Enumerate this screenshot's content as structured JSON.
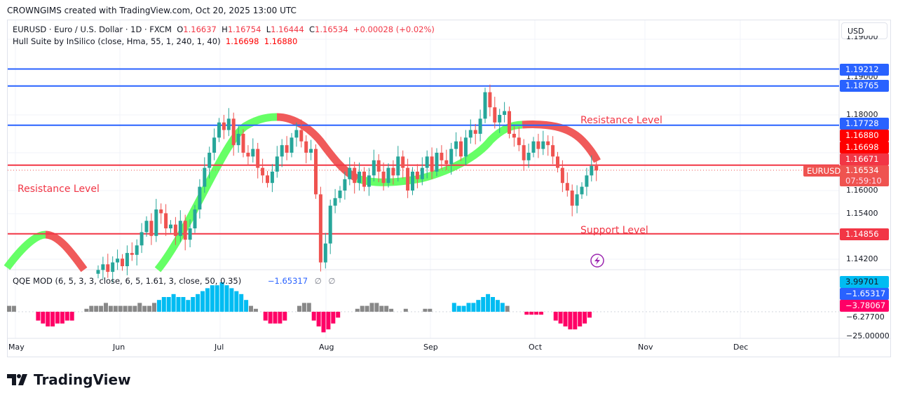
{
  "credit": "CROWNGIMS created with TradingView.com, Oct 20, 2025 13:00 UTC",
  "legend": {
    "symbol": "EURUSD · Euro / U.S. Dollar · 1D · FXCM",
    "o_label": "O",
    "o": "1.16637",
    "h_label": "H",
    "h": "1.16754",
    "l_label": "L",
    "l": "1.16444",
    "c_label": "C",
    "c": "1.16534",
    "change": "+0.00028 (+0.02%)",
    "hull_label": "Hull Suite by InSilico (close, Hma, 55, 1, 240, 1, 40)",
    "hull_v1": "1.16698",
    "hull_v2": "1.16880",
    "qqe_label": "QQE MOD (6, 5, 3, 3, close, 6, 5, 1.61, 3, close, 50, 0.35)",
    "qqe_value": "−1.65317",
    "qqe_na1": "∅",
    "qqe_na2": "∅"
  },
  "currency": "USD",
  "price_ticks": [
    "1.19000",
    "1.18000",
    "1.16000",
    "1.15400",
    "1.14200"
  ],
  "price_tags": [
    {
      "text": "1.19212",
      "color": "#2962ff"
    },
    {
      "text": "1.18765",
      "color": "#2962ff"
    },
    {
      "text": "1.17728",
      "color": "#2962ff"
    },
    {
      "text": "1.16880",
      "color": "#ff0000"
    },
    {
      "text": "1.16698",
      "color": "#ff0000"
    },
    {
      "text": "1.16671",
      "color": "#f23645"
    },
    {
      "text": "1.14856",
      "color": "#f23645"
    }
  ],
  "current": {
    "symbol": "EURUSD",
    "price": "1.16534",
    "countdown": "07:59:10",
    "color": "#ef5350"
  },
  "qqe_tags": [
    {
      "text": "3.99701",
      "color": "#00bcf2",
      "fg": "#131722"
    },
    {
      "text": "−1.65317",
      "color": "#2962ff",
      "fg": "#fff"
    },
    {
      "text": "−3.78067",
      "color": "#ff0066",
      "fg": "#fff"
    }
  ],
  "qqe_ticks": [
    "−6.27700",
    "−25.00000"
  ],
  "time_labels": [
    "May",
    "Jun",
    "Jul",
    "Aug",
    "Sep",
    "Oct",
    "Nov",
    "Dec"
  ],
  "annotations": {
    "res_right": "Resistance Level",
    "res_left": "Resistance Level",
    "support": "Support Level"
  },
  "brand": "TradingView",
  "colors": {
    "up": "#26a69a",
    "down": "#ef5350",
    "blue_line": "#2962ff",
    "red_line": "#f23645",
    "hull_up": "#66ff66",
    "hull_down": "#f05a5a"
  },
  "chart_data": {
    "type": "candlestick",
    "start_date": "2025-05-27",
    "end_date": "2025-10-20",
    "closes": [
      1.139,
      1.1405,
      1.1385,
      1.141,
      1.142,
      1.14,
      1.1435,
      1.143,
      1.1455,
      1.149,
      1.152,
      1.148,
      1.155,
      1.154,
      1.15,
      1.151,
      1.148,
      1.152,
      1.147,
      1.15,
      1.155,
      1.161,
      1.166,
      1.17,
      1.174,
      1.178,
      1.176,
      1.179,
      1.172,
      1.175,
      1.17,
      1.169,
      1.171,
      1.166,
      1.164,
      1.162,
      1.165,
      1.169,
      1.172,
      1.17,
      1.174,
      1.176,
      1.173,
      1.17,
      1.171,
      1.159,
      1.141,
      1.146,
      1.156,
      1.158,
      1.16,
      1.163,
      1.166,
      1.162,
      1.165,
      1.161,
      1.164,
      1.168,
      1.165,
      1.162,
      1.166,
      1.164,
      1.169,
      1.166,
      1.16,
      1.165,
      1.163,
      1.166,
      1.169,
      1.165,
      1.17,
      1.168,
      1.167,
      1.171,
      1.173,
      1.169,
      1.174,
      1.176,
      1.175,
      1.179,
      1.186,
      1.182,
      1.178,
      1.18,
      1.181,
      1.175,
      1.174,
      1.172,
      1.168,
      1.17,
      1.173,
      1.171,
      1.173,
      1.172,
      1.169,
      1.166,
      1.162,
      1.16,
      1.156,
      1.159,
      1.161,
      1.164,
      1.1665,
      1.1653
    ],
    "levels": [
      1.19212,
      1.18765,
      1.17728,
      1.16671,
      1.14856
    ],
    "qqe_hist": [
      [
        2,
        "g"
      ],
      [
        2,
        "g"
      ],
      [
        0,
        "g"
      ],
      [
        0,
        "g"
      ],
      [
        0,
        "g"
      ],
      [
        0,
        "g"
      ],
      [
        -3,
        "p"
      ],
      [
        -4,
        "p"
      ],
      [
        -5,
        "p"
      ],
      [
        -5,
        "p"
      ],
      [
        -4,
        "p"
      ],
      [
        -4,
        "p"
      ],
      [
        -3,
        "p"
      ],
      [
        -3,
        "p"
      ],
      [
        0,
        "g"
      ],
      [
        0,
        "g"
      ],
      [
        1,
        "g"
      ],
      [
        2,
        "g"
      ],
      [
        2,
        "g"
      ],
      [
        2,
        "g"
      ],
      [
        3,
        "g"
      ],
      [
        2,
        "g"
      ],
      [
        2,
        "g"
      ],
      [
        2,
        "g"
      ],
      [
        2,
        "g"
      ],
      [
        2,
        "g"
      ],
      [
        2,
        "g"
      ],
      [
        3,
        "g"
      ],
      [
        2,
        "g"
      ],
      [
        2,
        "g"
      ],
      [
        3,
        "g"
      ],
      [
        4,
        "b"
      ],
      [
        5,
        "b"
      ],
      [
        5,
        "b"
      ],
      [
        6,
        "b"
      ],
      [
        5,
        "b"
      ],
      [
        5,
        "b"
      ],
      [
        4,
        "b"
      ],
      [
        5,
        "b"
      ],
      [
        6,
        "b"
      ],
      [
        7,
        "b"
      ],
      [
        8,
        "b"
      ],
      [
        9,
        "b"
      ],
      [
        9,
        "b"
      ],
      [
        10,
        "b"
      ],
      [
        9,
        "b"
      ],
      [
        8,
        "b"
      ],
      [
        7,
        "b"
      ],
      [
        6,
        "b"
      ],
      [
        4,
        "b"
      ],
      [
        2,
        "g"
      ],
      [
        1,
        "g"
      ],
      [
        0,
        "g"
      ],
      [
        -3,
        "p"
      ],
      [
        -4,
        "p"
      ],
      [
        -4,
        "p"
      ],
      [
        -4,
        "p"
      ],
      [
        -3,
        "p"
      ],
      [
        0,
        "g"
      ],
      [
        0,
        "g"
      ],
      [
        2,
        "g"
      ],
      [
        3,
        "g"
      ],
      [
        3,
        "g"
      ],
      [
        -3,
        "p"
      ],
      [
        -5,
        "p"
      ],
      [
        -7,
        "p"
      ],
      [
        -6,
        "p"
      ],
      [
        -4,
        "p"
      ],
      [
        -2,
        "p"
      ],
      [
        0,
        "g"
      ],
      [
        0,
        "g"
      ],
      [
        0,
        "g"
      ],
      [
        1,
        "g"
      ],
      [
        2,
        "g"
      ],
      [
        2,
        "g"
      ],
      [
        3,
        "g"
      ],
      [
        3,
        "g"
      ],
      [
        2,
        "g"
      ],
      [
        2,
        "g"
      ],
      [
        1,
        "g"
      ],
      [
        0,
        "g"
      ],
      [
        0,
        "g"
      ],
      [
        1,
        "g"
      ],
      [
        0,
        "g"
      ],
      [
        0,
        "g"
      ],
      [
        0,
        "g"
      ],
      [
        1,
        "g"
      ],
      [
        1,
        "g"
      ],
      [
        0,
        "g"
      ],
      [
        0,
        "g"
      ],
      [
        0,
        "g"
      ],
      [
        0,
        "g"
      ],
      [
        3,
        "b"
      ],
      [
        2,
        "b"
      ],
      [
        2,
        "b"
      ],
      [
        3,
        "b"
      ],
      [
        3,
        "b"
      ],
      [
        4,
        "b"
      ],
      [
        5,
        "b"
      ],
      [
        6,
        "b"
      ],
      [
        5,
        "b"
      ],
      [
        4,
        "b"
      ],
      [
        3,
        "b"
      ],
      [
        2,
        "g"
      ],
      [
        0,
        "g"
      ],
      [
        0,
        "g"
      ],
      [
        0,
        "g"
      ],
      [
        -1,
        "p"
      ],
      [
        -1,
        "p"
      ],
      [
        -1,
        "p"
      ],
      [
        -1,
        "p"
      ],
      [
        0,
        "g"
      ],
      [
        0,
        "g"
      ],
      [
        -3,
        "p"
      ],
      [
        -4,
        "p"
      ],
      [
        -5,
        "p"
      ],
      [
        -6,
        "p"
      ],
      [
        -6,
        "p"
      ],
      [
        -5,
        "p"
      ],
      [
        -4,
        "p"
      ],
      [
        -2,
        "p"
      ]
    ]
  }
}
